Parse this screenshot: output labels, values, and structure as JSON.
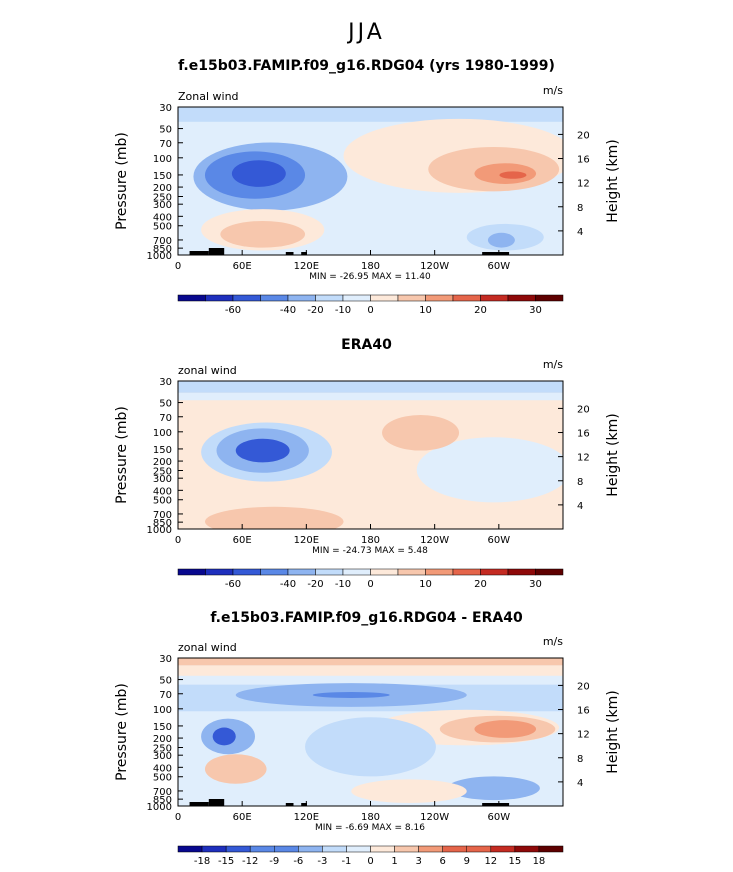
{
  "suptitle": "JJA",
  "colors": {
    "levels11": [
      "#08088e",
      "#1e2fbd",
      "#3459d6",
      "#5a88e6",
      "#8eb4f0",
      "#c2dcfa",
      "#e0eefc",
      "#fde9da",
      "#f7c7ad",
      "#f29a78",
      "#e5654a",
      "#c42b22",
      "#8e0909",
      "#5e0000"
    ],
    "bg_land": "#000000"
  },
  "panels": [
    {
      "title": "f.e15b03.FAMIP.f09_g16.RDG04 (yrs 1980-1999)",
      "left_label": "Zonal wind",
      "right_label": "m/s",
      "stats": "MIN = -26.95   MAX =  11.40",
      "colorbar_labels": [
        "-60",
        "-40",
        "-20",
        "-10",
        "0",
        "10",
        "20",
        "30"
      ]
    },
    {
      "title": "ERA40",
      "left_label": "zonal wind",
      "right_label": "m/s",
      "stats": "MIN = -24.73   MAX =   5.48",
      "colorbar_labels": [
        "-60",
        "-40",
        "-20",
        "-10",
        "0",
        "10",
        "20",
        "30"
      ]
    },
    {
      "title": "f.e15b03.FAMIP.f09_g16.RDG04 - ERA40",
      "left_label": "zonal wind",
      "right_label": "m/s",
      "stats": "MIN =  -6.69   MAX =   8.16",
      "colorbar_labels": [
        "-18",
        "-15",
        "-12",
        "-9",
        "-6",
        "-3",
        "-1",
        "0",
        "1",
        "3",
        "6",
        "9",
        "12",
        "15",
        "18"
      ]
    }
  ],
  "axes": {
    "ylabel_left": "Pressure (mb)",
    "ylabel_right": "Height (km)",
    "pressure_ticks": [
      "30",
      "50",
      "70",
      "100",
      "150",
      "200",
      "250",
      "300",
      "400",
      "500",
      "700",
      "850",
      "1000"
    ],
    "height_ticks": [
      "20",
      "16",
      "12",
      "8",
      "4"
    ],
    "lon_ticks": [
      "0",
      "60E",
      "120E",
      "180",
      "120W",
      "60W"
    ]
  },
  "chart_data": [
    {
      "type": "heatmap",
      "title": "f.e15b03.FAMIP.f09_g16.RDG04 (yrs 1980-1999)",
      "xlabel": "",
      "ylabel": "Pressure (mb)",
      "x_ticks": [
        "0",
        "60E",
        "120E",
        "180",
        "120W",
        "60W"
      ],
      "y_ticks": [
        "30",
        "50",
        "70",
        "100",
        "150",
        "200",
        "250",
        "300",
        "400",
        "500",
        "700",
        "850",
        "1000"
      ],
      "min": -26.95,
      "max": 11.4,
      "colorbar": [
        -60,
        -40,
        -20,
        -10,
        0,
        10,
        20,
        30
      ]
    },
    {
      "type": "heatmap",
      "title": "ERA40",
      "xlabel": "",
      "ylabel": "Pressure (mb)",
      "x_ticks": [
        "0",
        "60E",
        "120E",
        "180",
        "120W",
        "60W"
      ],
      "y_ticks": [
        "30",
        "50",
        "70",
        "100",
        "150",
        "200",
        "250",
        "300",
        "400",
        "500",
        "700",
        "850",
        "1000"
      ],
      "min": -24.73,
      "max": 5.48,
      "colorbar": [
        -60,
        -40,
        -20,
        -10,
        0,
        10,
        20,
        30
      ]
    },
    {
      "type": "heatmap",
      "title": "f.e15b03.FAMIP.f09_g16.RDG04 - ERA40",
      "xlabel": "",
      "ylabel": "Pressure (mb)",
      "x_ticks": [
        "0",
        "60E",
        "120E",
        "180",
        "120W",
        "60W"
      ],
      "y_ticks": [
        "30",
        "50",
        "70",
        "100",
        "150",
        "200",
        "250",
        "300",
        "400",
        "500",
        "700",
        "850",
        "1000"
      ],
      "min": -6.69,
      "max": 8.16,
      "colorbar": [
        -18,
        -15,
        -12,
        -9,
        -6,
        -3,
        -1,
        0,
        1,
        3,
        6,
        9,
        12,
        15,
        18
      ]
    }
  ]
}
